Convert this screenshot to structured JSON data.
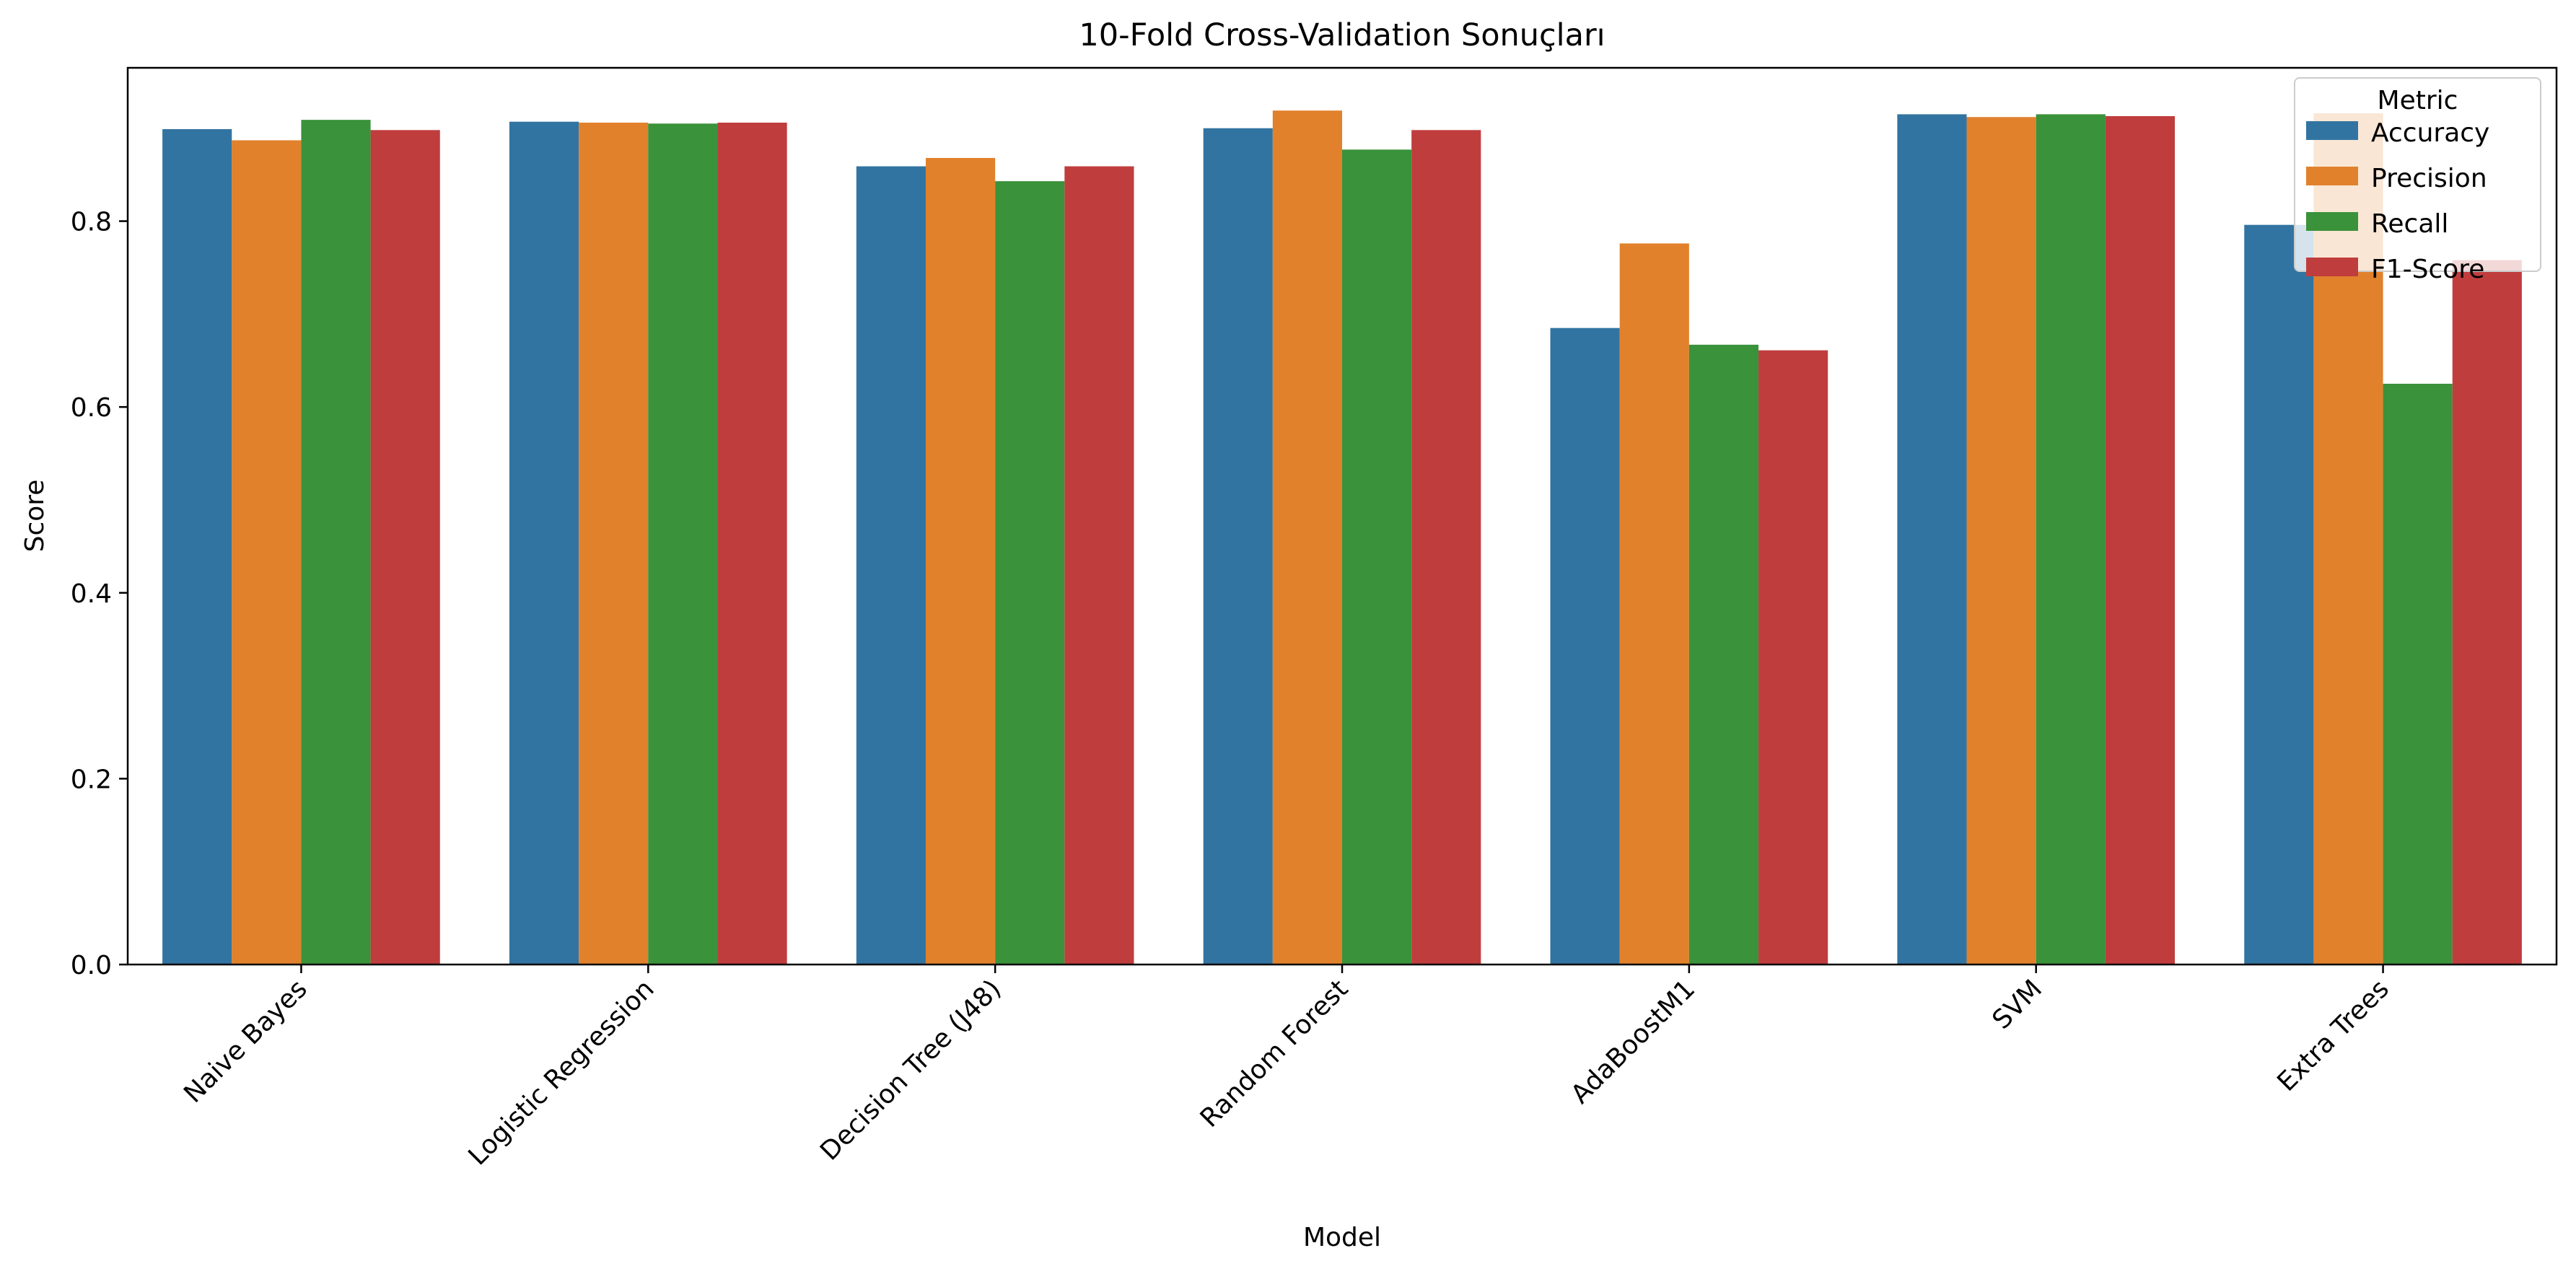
{
  "chart_data": {
    "type": "bar",
    "title": "10-Fold Cross-Validation Sonuçları",
    "xlabel": "Model",
    "ylabel": "Score",
    "ylim": [
      0,
      0.965
    ],
    "yticks": [
      0.0,
      0.2,
      0.4,
      0.6,
      0.8
    ],
    "ytick_labels": [
      "0.0",
      "0.2",
      "0.4",
      "0.6",
      "0.8"
    ],
    "grid": false,
    "categories": [
      "Naive Bayes",
      "Logistic Regression",
      "Decision Tree (J48)",
      "Random Forest",
      "AdaBoostM1",
      "SVM",
      "Extra Trees"
    ],
    "legend": {
      "title": "Metric",
      "placement": "top-right"
    },
    "series": [
      {
        "name": "Accuracy",
        "color": "#3274a1",
        "values": [
          0.899,
          0.907,
          0.859,
          0.9,
          0.685,
          0.915,
          0.796
        ]
      },
      {
        "name": "Precision",
        "color": "#e1812c",
        "values": [
          0.887,
          0.906,
          0.868,
          0.919,
          0.776,
          0.912,
          0.916
        ]
      },
      {
        "name": "Recall",
        "color": "#3a923a",
        "values": [
          0.909,
          0.905,
          0.843,
          0.877,
          0.667,
          0.915,
          0.625
        ]
      },
      {
        "name": "F1-Score",
        "color": "#c03d3e",
        "values": [
          0.898,
          0.906,
          0.859,
          0.898,
          0.661,
          0.913,
          0.758
        ]
      }
    ]
  }
}
